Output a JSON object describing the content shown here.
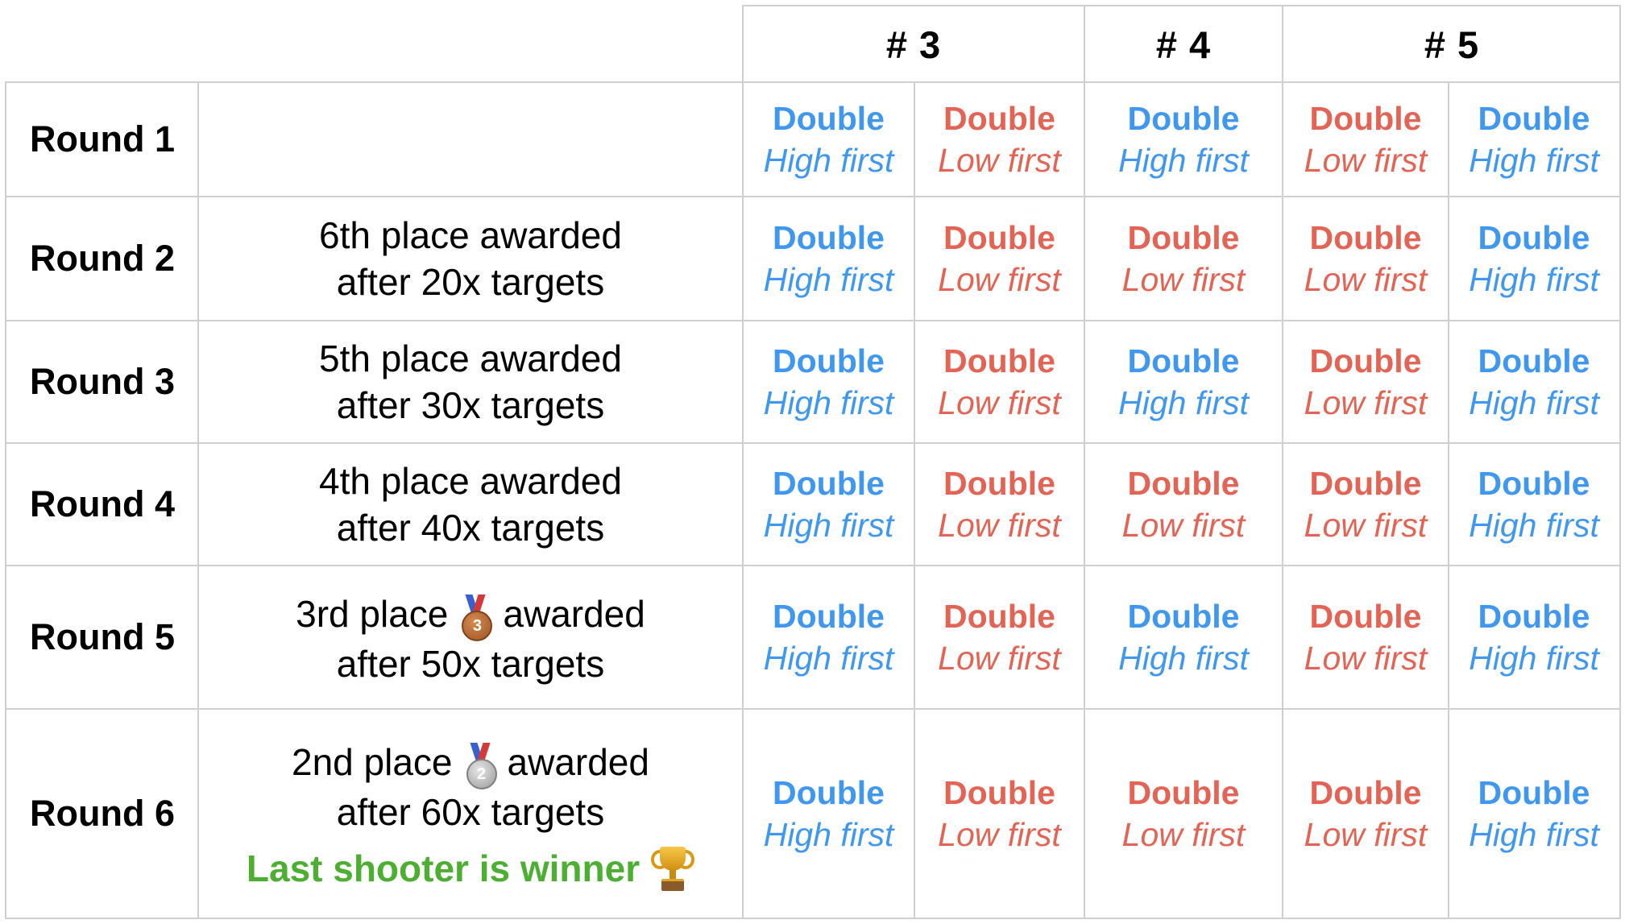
{
  "header": {
    "columns": [
      "# 3",
      "# 4",
      "# 5"
    ]
  },
  "colors": {
    "blue": "#3f97ef",
    "red": "#e36354",
    "green": "#4caf32",
    "grid": "#cfcfcf"
  },
  "labels": {
    "double": "Double",
    "high": "High first",
    "low": "Low first"
  },
  "rows": [
    {
      "round": "Round 1",
      "desc_line1": "",
      "desc_line2": "",
      "medal_icon": "",
      "cells": [
        "high",
        "low",
        "high",
        "low",
        "high"
      ]
    },
    {
      "round": "Round 2",
      "desc_line1": "6th place awarded",
      "desc_line2": "after 20x targets",
      "medal_icon": "",
      "cells": [
        "high",
        "low",
        "low",
        "low",
        "high"
      ]
    },
    {
      "round": "Round 3",
      "desc_line1": "5th place awarded",
      "desc_line2": "after 30x targets",
      "medal_icon": "",
      "cells": [
        "high",
        "low",
        "high",
        "low",
        "high"
      ]
    },
    {
      "round": "Round 4",
      "desc_line1": "4th place awarded",
      "desc_line2": "after 40x targets",
      "medal_icon": "",
      "cells": [
        "high",
        "low",
        "low",
        "low",
        "high"
      ]
    },
    {
      "round": "Round 5",
      "desc_pre": "3rd place",
      "desc_post": "awarded",
      "desc_line2": "after 50x targets",
      "medal_icon": "bronze-medal-icon",
      "medal_number": "3",
      "cells": [
        "high",
        "low",
        "high",
        "low",
        "high"
      ]
    },
    {
      "round": "Round 6",
      "desc_pre": "2nd place",
      "desc_post": "awarded",
      "desc_line2": "after 60x targets",
      "medal_icon": "silver-medal-icon",
      "medal_number": "2",
      "winner": "Last shooter is winner",
      "winner_icon": "trophy-icon",
      "cells": [
        "high",
        "low",
        "low",
        "low",
        "high"
      ]
    }
  ]
}
